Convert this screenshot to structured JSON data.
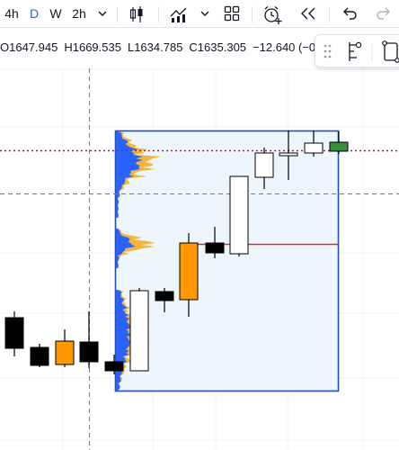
{
  "toolbar": {
    "intervals": [
      "4h",
      "D",
      "W",
      "2h"
    ],
    "active_interval": "D",
    "icons": [
      "chevron-down-icon",
      "candles-icon",
      "indicators-icon",
      "chevron-down-icon",
      "layout-icon",
      "alert-icon",
      "replay-icon",
      "undo-icon",
      "redo-icon"
    ]
  },
  "legend": {
    "open": "O1647.945",
    "high": "H1669.535",
    "low": "L1634.785",
    "close": "C1635.305",
    "change": "−12.640 (−0"
  },
  "colors": {
    "accent": "#2962ff",
    "up_body": "#ffffff",
    "down_body": "#000000",
    "highlight_body": "#ff9800",
    "last_bar": "#388e3c",
    "profile_blue": "#2962ff",
    "profile_orange": "#f5b53a",
    "poc_line": "#d32f2f",
    "range_border": "#1f4fbf",
    "range_fill": "#eef6fd",
    "price_line": "#b71c1c"
  }
}
